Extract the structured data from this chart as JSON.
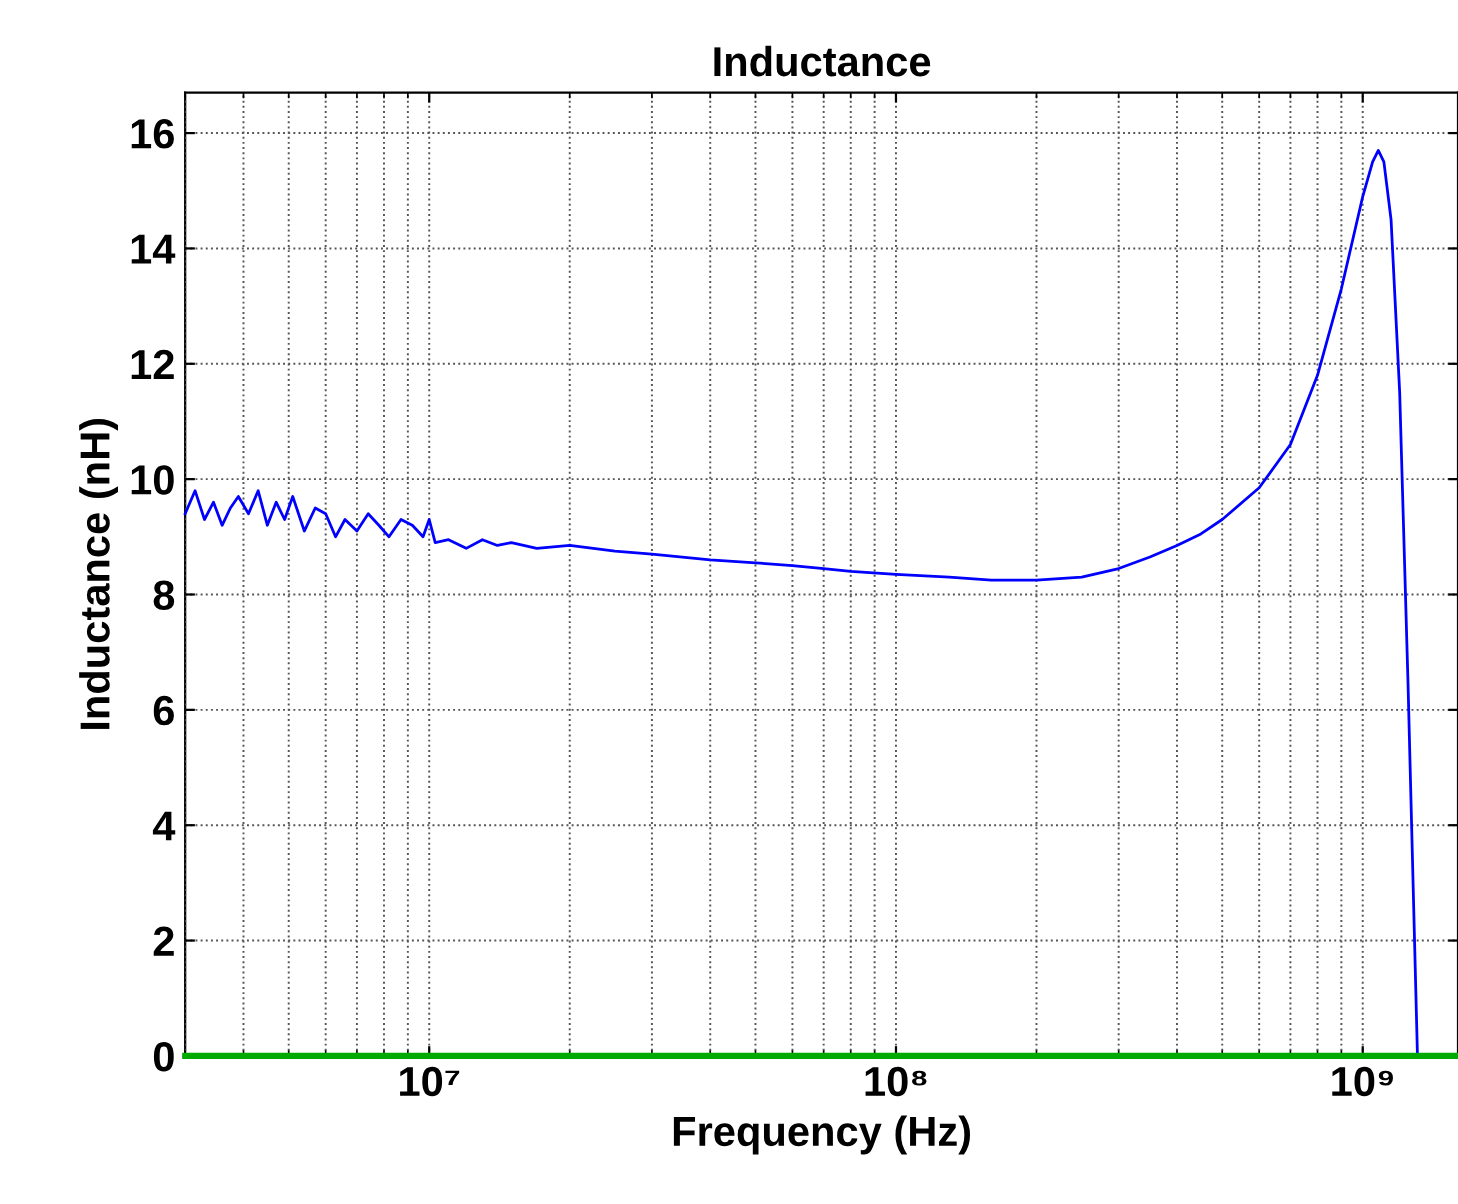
{
  "chart_data": {
    "type": "line",
    "title": "Inductance",
    "xlabel": "Frequency (Hz)",
    "ylabel": "Inductance (nH)",
    "log": "x",
    "grid": true,
    "xlim": [
      3000000,
      1600000000
    ],
    "ylim": [
      0,
      16.7
    ],
    "xticks": [
      {
        "value": 10000000,
        "label": "10⁷"
      },
      {
        "value": 100000000,
        "label": "10⁸"
      },
      {
        "value": 1000000000,
        "label": "10⁹"
      }
    ],
    "yticks": [
      0,
      2,
      4,
      6,
      8,
      10,
      12,
      14,
      16
    ],
    "series": [
      {
        "color": "#0000ff",
        "x": [
          3000000,
          3150000,
          3300000,
          3450000,
          3600000,
          3750000,
          3900000,
          4100000,
          4300000,
          4500000,
          4700000,
          4900000,
          5100000,
          5400000,
          5700000,
          6000000,
          6300000,
          6600000,
          7000000,
          7400000,
          7800000,
          8200000,
          8700000,
          9200000,
          9700000,
          10000000,
          10300000,
          11000000,
          12000000,
          13000000,
          14000000,
          15000000,
          17000000,
          20000000,
          25000000,
          30000000,
          40000000,
          50000000,
          60000000,
          70000000,
          80000000,
          100000000,
          130000000,
          160000000,
          200000000,
          250000000,
          300000000,
          350000000,
          400000000,
          450000000,
          500000000,
          600000000,
          700000000,
          800000000,
          900000000,
          1000000000,
          1050000000,
          1080000000,
          1110000000,
          1150000000,
          1200000000,
          1250000000,
          1310000000
        ],
        "values": [
          9.4,
          9.8,
          9.3,
          9.6,
          9.2,
          9.5,
          9.7,
          9.4,
          9.8,
          9.2,
          9.6,
          9.3,
          9.7,
          9.1,
          9.5,
          9.4,
          9.0,
          9.3,
          9.1,
          9.4,
          9.2,
          9.0,
          9.3,
          9.2,
          9.0,
          9.3,
          8.9,
          8.95,
          8.8,
          8.95,
          8.85,
          8.9,
          8.8,
          8.85,
          8.75,
          8.7,
          8.6,
          8.55,
          8.5,
          8.45,
          8.4,
          8.35,
          8.3,
          8.25,
          8.25,
          8.3,
          8.45,
          8.65,
          8.85,
          9.05,
          9.3,
          9.85,
          10.6,
          11.8,
          13.3,
          14.9,
          15.5,
          15.7,
          15.5,
          14.5,
          11.5,
          6.5,
          0
        ]
      },
      {
        "color": "#00aa00",
        "x": [
          3000000,
          1600000000
        ],
        "values": [
          0,
          0
        ]
      }
    ]
  }
}
